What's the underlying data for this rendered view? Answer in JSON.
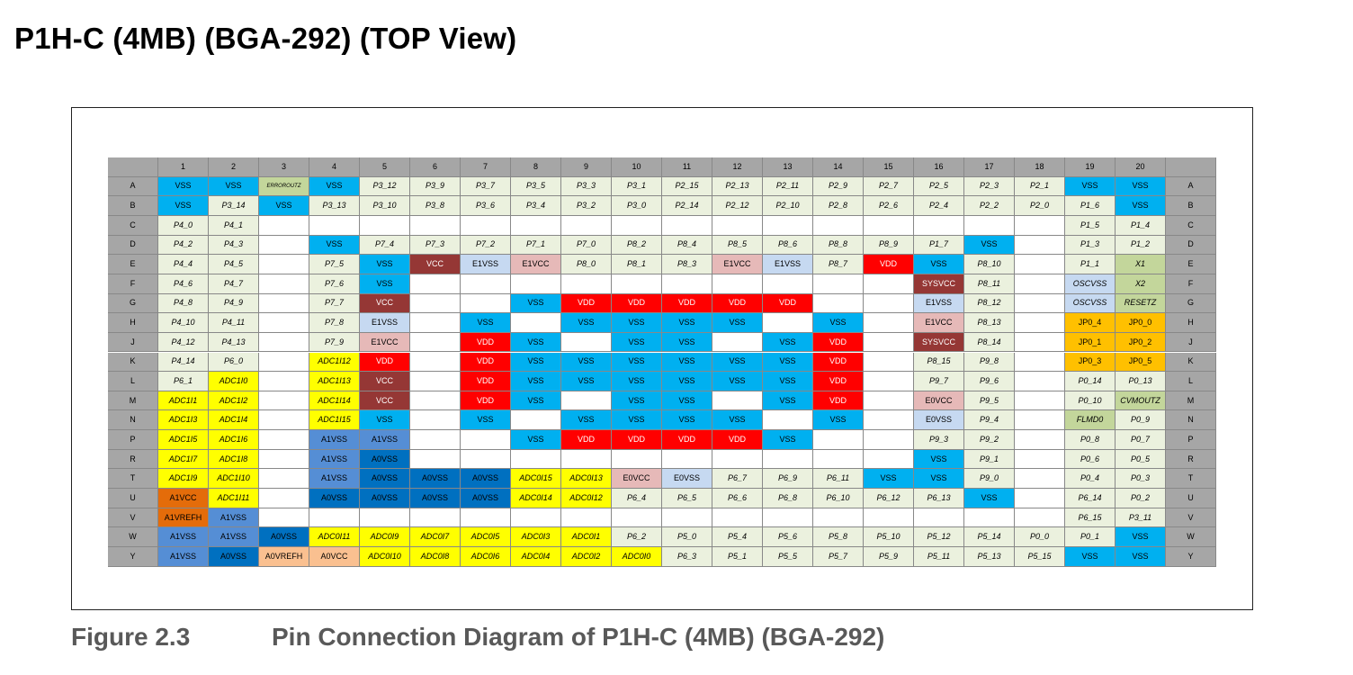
{
  "title": "P1H-C (4MB) (BGA-292) (TOP View)",
  "caption": {
    "label": "Figure 2.3",
    "text": "Pin Connection Diagram of P1H-C (4MB) (BGA-292)"
  },
  "colors": {
    "vss": "#00b0f0",
    "vdd": "#ff0000",
    "vcc": "#953735",
    "e1": "#c6d9f1",
    "e1vcc": "#e6b9b8",
    "adc": "#ffff00",
    "a1vss": "#558ed5",
    "a0vss": "#0070c0",
    "a1vcc": "#e46c0a",
    "a0vcc": "#fac090",
    "gpio": "#ebf1de",
    "osc": "#c6d9f1",
    "green": "#c3d69b",
    "jp": "#ffc000",
    "sysvcc": "#953735",
    "empty": "#ffffff",
    "header": "#a6a6a6"
  },
  "columns": [
    "1",
    "2",
    "3",
    "4",
    "5",
    "6",
    "7",
    "8",
    "9",
    "10",
    "11",
    "12",
    "13",
    "14",
    "15",
    "16",
    "17",
    "18",
    "19",
    "20"
  ],
  "rows": [
    {
      "label": "A",
      "cells": [
        "VSS",
        "VSS",
        "ERROROUTZ",
        "VSS",
        "P3_12",
        "P3_9",
        "P3_7",
        "P3_5",
        "P3_3",
        "P3_1",
        "P2_15",
        "P2_13",
        "P2_11",
        "P2_9",
        "P2_7",
        "P2_5",
        "P2_3",
        "P2_1",
        "VSS",
        "VSS"
      ]
    },
    {
      "label": "B",
      "cells": [
        "VSS",
        "P3_14",
        "VSS",
        "P3_13",
        "P3_10",
        "P3_8",
        "P3_6",
        "P3_4",
        "P3_2",
        "P3_0",
        "P2_14",
        "P2_12",
        "P2_10",
        "P2_8",
        "P2_6",
        "P2_4",
        "P2_2",
        "P2_0",
        "P1_6",
        "VSS"
      ]
    },
    {
      "label": "C",
      "cells": [
        "P4_0",
        "P4_1",
        "",
        "",
        "",
        "",
        "",
        "",
        "",
        "",
        "",
        "",
        "",
        "",
        "",
        "",
        "",
        "",
        "P1_5",
        "P1_4"
      ]
    },
    {
      "label": "D",
      "cells": [
        "P4_2",
        "P4_3",
        "",
        "VSS",
        "P7_4",
        "P7_3",
        "P7_2",
        "P7_1",
        "P7_0",
        "P8_2",
        "P8_4",
        "P8_5",
        "P8_6",
        "P8_8",
        "P8_9",
        "P1_7",
        "VSS",
        "",
        "P1_3",
        "P1_2"
      ]
    },
    {
      "label": "E",
      "cells": [
        "P4_4",
        "P4_5",
        "",
        "P7_5",
        "VSS",
        "VCC",
        "E1VSS",
        "E1VCC",
        "P8_0",
        "P8_1",
        "P8_3",
        "E1VCC",
        "E1VSS",
        "P8_7",
        "VDD",
        "VSS",
        "P8_10",
        "",
        "P1_1",
        "X1"
      ]
    },
    {
      "label": "F",
      "cells": [
        "P4_6",
        "P4_7",
        "",
        "P7_6",
        "VSS",
        "",
        "",
        "",
        "",
        "",
        "",
        "",
        "",
        "",
        "",
        "SYSVCC",
        "P8_11",
        "",
        "OSCVSS",
        "X2"
      ]
    },
    {
      "label": "G",
      "cells": [
        "P4_8",
        "P4_9",
        "",
        "P7_7",
        "VCC",
        "",
        "",
        "VSS",
        "VDD",
        "VDD",
        "VDD",
        "VDD",
        "VDD",
        "",
        "",
        "E1VSS",
        "P8_12",
        "",
        "OSCVSS",
        "RESETZ"
      ]
    },
    {
      "label": "H",
      "cells": [
        "P4_10",
        "P4_11",
        "",
        "P7_8",
        "E1VSS",
        "",
        "VSS",
        "",
        "VSS",
        "VSS",
        "VSS",
        "VSS",
        "",
        "VSS",
        "",
        "E1VCC",
        "P8_13",
        "",
        "JP0_4",
        "JP0_0"
      ]
    },
    {
      "label": "J",
      "cells": [
        "P4_12",
        "P4_13",
        "",
        "P7_9",
        "E1VCC",
        "",
        "VDD",
        "VSS",
        "",
        "VSS",
        "VSS",
        "",
        "VSS",
        "VDD",
        "",
        "SYSVCC",
        "P8_14",
        "",
        "JP0_1",
        "JP0_2"
      ]
    },
    {
      "label": "K",
      "cells": [
        "P4_14",
        "P6_0",
        "",
        "ADC1I12",
        "VDD",
        "",
        "VDD",
        "VSS",
        "VSS",
        "VSS",
        "VSS",
        "VSS",
        "VSS",
        "VDD",
        "",
        "P8_15",
        "P9_8",
        "",
        "JP0_3",
        "JP0_5"
      ]
    },
    {
      "label": "L",
      "cells": [
        "P6_1",
        "ADC1I0",
        "",
        "ADC1I13",
        "VCC",
        "",
        "VDD",
        "VSS",
        "VSS",
        "VSS",
        "VSS",
        "VSS",
        "VSS",
        "VDD",
        "",
        "P9_7",
        "P9_6",
        "",
        "P0_14",
        "P0_13"
      ]
    },
    {
      "label": "M",
      "cells": [
        "ADC1I1",
        "ADC1I2",
        "",
        "ADC1I14",
        "VCC",
        "",
        "VDD",
        "VSS",
        "",
        "VSS",
        "VSS",
        "",
        "VSS",
        "VDD",
        "",
        "E0VCC",
        "P9_5",
        "",
        "P0_10",
        "CVMOUTZ"
      ]
    },
    {
      "label": "N",
      "cells": [
        "ADC1I3",
        "ADC1I4",
        "",
        "ADC1I15",
        "VSS",
        "",
        "VSS",
        "",
        "VSS",
        "VSS",
        "VSS",
        "VSS",
        "",
        "VSS",
        "",
        "E0VSS",
        "P9_4",
        "",
        "FLMD0",
        "P0_9"
      ]
    },
    {
      "label": "P",
      "cells": [
        "ADC1I5",
        "ADC1I6",
        "",
        "A1VSS",
        "A1VSS",
        "",
        "",
        "VSS",
        "VDD",
        "VDD",
        "VDD",
        "VDD",
        "VSS",
        "",
        "",
        "P9_3",
        "P9_2",
        "",
        "P0_8",
        "P0_7"
      ]
    },
    {
      "label": "R",
      "cells": [
        "ADC1I7",
        "ADC1I8",
        "",
        "A1VSS",
        "A0VSS",
        "",
        "",
        "",
        "",
        "",
        "",
        "",
        "",
        "",
        "",
        "VSS",
        "P9_1",
        "",
        "P0_6",
        "P0_5"
      ]
    },
    {
      "label": "T",
      "cells": [
        "ADC1I9",
        "ADC1I10",
        "",
        "A1VSS",
        "A0VSS",
        "A0VSS",
        "A0VSS",
        "ADC0I15",
        "ADC0I13",
        "E0VCC",
        "E0VSS",
        "P6_7",
        "P6_9",
        "P6_11",
        "VSS",
        "VSS",
        "P9_0",
        "",
        "P0_4",
        "P0_3"
      ]
    },
    {
      "label": "U",
      "cells": [
        "A1VCC",
        "ADC1I11",
        "",
        "A0VSS",
        "A0VSS",
        "A0VSS",
        "A0VSS",
        "ADC0I14",
        "ADC0I12",
        "P6_4",
        "P6_5",
        "P6_6",
        "P6_8",
        "P6_10",
        "P6_12",
        "P6_13",
        "VSS",
        "",
        "P6_14",
        "P0_2"
      ]
    },
    {
      "label": "V",
      "cells": [
        "A1VREFH",
        "A1VSS",
        "",
        "",
        "",
        "",
        "",
        "",
        "",
        "",
        "",
        "",
        "",
        "",
        "",
        "",
        "",
        "",
        "P6_15",
        "P3_11"
      ]
    },
    {
      "label": "W",
      "cells": [
        "A1VSS",
        "A1VSS",
        "A0VSS",
        "ADC0I11",
        "ADC0I9",
        "ADC0I7",
        "ADC0I5",
        "ADC0I3",
        "ADC0I1",
        "P6_2",
        "P5_0",
        "P5_4",
        "P5_6",
        "P5_8",
        "P5_10",
        "P5_12",
        "P5_14",
        "P0_0",
        "P0_1",
        "VSS"
      ]
    },
    {
      "label": "Y",
      "cells": [
        "A1VSS",
        "A0VSS",
        "A0VREFH",
        "A0VCC",
        "ADC0I10",
        "ADC0I8",
        "ADC0I6",
        "ADC0I4",
        "ADC0I2",
        "ADC0I0",
        "P6_3",
        "P5_1",
        "P5_5",
        "P5_7",
        "P5_9",
        "P5_11",
        "P5_13",
        "P5_15",
        "VSS",
        "VSS"
      ]
    }
  ]
}
